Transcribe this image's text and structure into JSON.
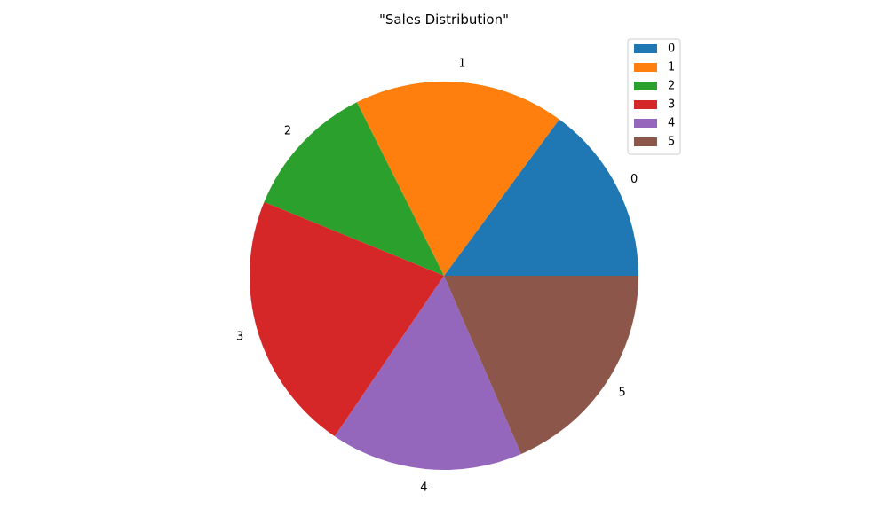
{
  "chart_data": {
    "type": "pie",
    "title": "\"Sales Distribution\"",
    "categories": [
      "0",
      "1",
      "2",
      "3",
      "4",
      "5"
    ],
    "values": [
      14.9,
      17.5,
      11.4,
      21.7,
      16.0,
      18.5
    ],
    "colors": [
      "#1f77b4",
      "#ff7f0e",
      "#2ca02c",
      "#d62728",
      "#9467bd",
      "#8c564b"
    ],
    "start_angle_deg": 0,
    "direction": "counterclockwise",
    "legend": {
      "position": "top-right",
      "entries": [
        "0",
        "1",
        "2",
        "3",
        "4",
        "5"
      ]
    }
  }
}
